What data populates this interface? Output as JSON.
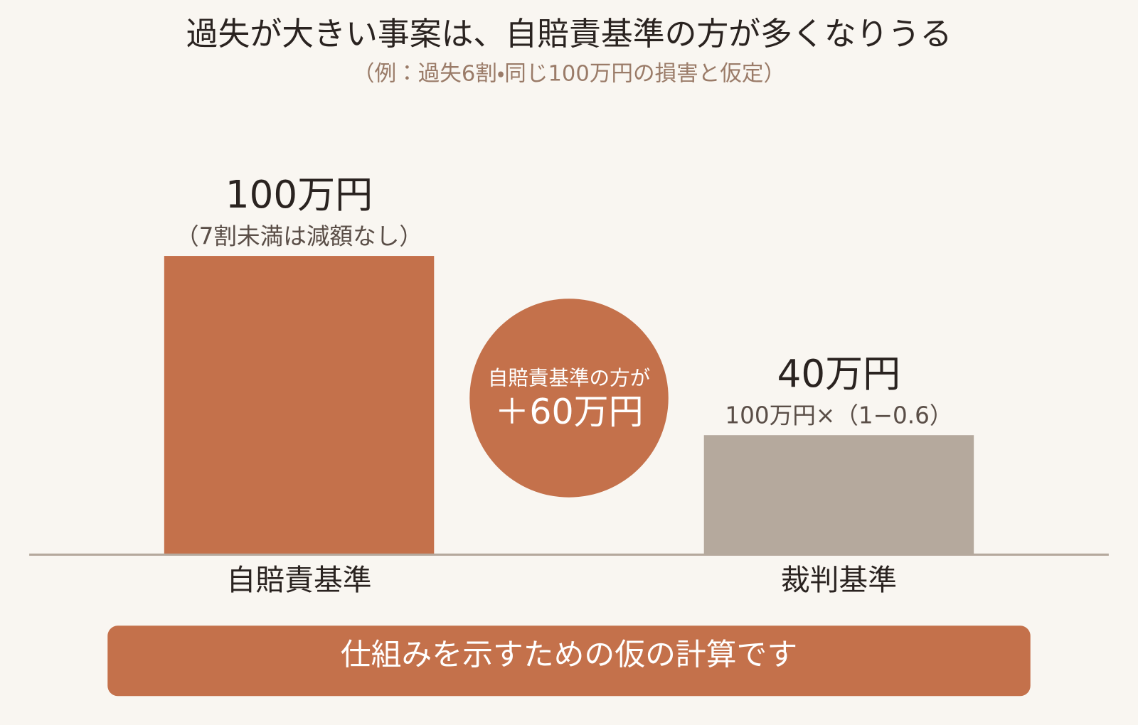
{
  "chart_data": {
    "type": "bar",
    "title": "過失が大きい事案は、自賠責基準の方が多くなりうる",
    "subtitle": "（例：過失6割・同じ100万円の損害と仮定）",
    "categories": [
      "自賠責基準",
      "裁判基準"
    ],
    "values": [
      100,
      40
    ],
    "value_labels": [
      "100万円",
      "40万円"
    ],
    "notes": [
      "（7割未満は減額なし）",
      "100万円×（1−0.6）"
    ],
    "colors": [
      "#c4714b",
      "#b5a99d"
    ],
    "annotation": {
      "lines": [
        "自賠責基準の方が",
        "＋60万円"
      ],
      "color": "#c4714b"
    },
    "footer": "仕組みを示すための仮の計算です"
  }
}
